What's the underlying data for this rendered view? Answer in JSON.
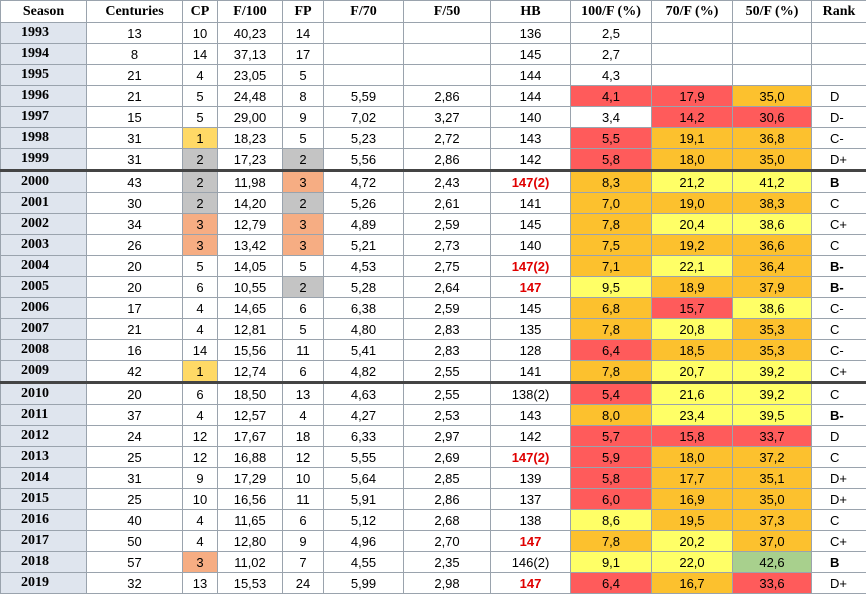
{
  "table": {
    "header": [
      "Season",
      "Centuries",
      "CP",
      "F/100",
      "FP",
      "F/70",
      "F/50",
      "HB",
      "100/F (%)",
      "70/F (%)",
      "50/F (%)",
      "Rank"
    ],
    "rows": [
      [
        1993,
        13,
        10,
        "40,23",
        14,
        null,
        null,
        136,
        "2,5",
        null,
        null,
        null
      ],
      [
        1994,
        8,
        14,
        "37,13",
        17,
        null,
        null,
        145,
        "2,7",
        null,
        null,
        null
      ],
      [
        1995,
        21,
        4,
        "23,05",
        5,
        null,
        null,
        144,
        "4,3",
        null,
        null,
        null
      ],
      [
        1996,
        21,
        5,
        "24,48",
        8,
        "5,59",
        "2,86",
        144,
        "4,1",
        "17,9",
        "35,0",
        "D"
      ],
      [
        1997,
        15,
        5,
        "29,00",
        9,
        "7,02",
        "3,27",
        140,
        "3,4",
        "14,2",
        "30,6",
        "D-"
      ],
      [
        1998,
        31,
        1,
        "18,23",
        5,
        "5,23",
        "2,72",
        143,
        "5,5",
        "19,1",
        "36,8",
        "C-"
      ],
      [
        1999,
        31,
        2,
        "17,23",
        2,
        "5,56",
        "2,86",
        142,
        "5,8",
        "18,0",
        "35,0",
        "D+"
      ],
      [
        2000,
        43,
        2,
        "11,98",
        3,
        "4,72",
        "2,43",
        "147(2)",
        "8,3",
        "21,2",
        "41,2",
        "B"
      ],
      [
        2001,
        30,
        2,
        "14,20",
        2,
        "5,26",
        "2,61",
        141,
        "7,0",
        "19,0",
        "38,3",
        "C"
      ],
      [
        2002,
        34,
        3,
        "12,79",
        3,
        "4,89",
        "2,59",
        145,
        "7,8",
        "20,4",
        "38,6",
        "C+"
      ],
      [
        2003,
        26,
        3,
        "13,42",
        3,
        "5,21",
        "2,73",
        140,
        "7,5",
        "19,2",
        "36,6",
        "C"
      ],
      [
        2004,
        20,
        5,
        "14,05",
        5,
        "4,53",
        "2,75",
        "147(2)",
        "7,1",
        "22,1",
        "36,4",
        "B-"
      ],
      [
        2005,
        20,
        6,
        "10,55",
        2,
        "5,28",
        "2,64",
        147,
        "9,5",
        "18,9",
        "37,9",
        "B-"
      ],
      [
        2006,
        17,
        4,
        "14,65",
        6,
        "6,38",
        "2,59",
        145,
        "6,8",
        "15,7",
        "38,6",
        "C-"
      ],
      [
        2007,
        21,
        4,
        "12,81",
        5,
        "4,80",
        "2,83",
        135,
        "7,8",
        "20,8",
        "35,3",
        "C"
      ],
      [
        2008,
        16,
        14,
        "15,56",
        11,
        "5,41",
        "2,83",
        128,
        "6,4",
        "18,5",
        "35,3",
        "C-"
      ],
      [
        2009,
        42,
        1,
        "12,74",
        6,
        "4,82",
        "2,55",
        141,
        "7,8",
        "20,7",
        "39,2",
        "C+"
      ],
      [
        2010,
        20,
        6,
        "18,50",
        13,
        "4,63",
        "2,55",
        "138(2)",
        "5,4",
        "21,6",
        "39,2",
        "C"
      ],
      [
        2011,
        37,
        4,
        "12,57",
        4,
        "4,27",
        "2,53",
        143,
        "8,0",
        "23,4",
        "39,5",
        "B-"
      ],
      [
        2012,
        24,
        12,
        "17,67",
        18,
        "6,33",
        "2,97",
        142,
        "5,7",
        "15,8",
        "33,7",
        "D"
      ],
      [
        2013,
        25,
        12,
        "16,88",
        12,
        "5,55",
        "2,69",
        "147(2)",
        "5,9",
        "18,0",
        "37,2",
        "C"
      ],
      [
        2014,
        31,
        9,
        "17,29",
        10,
        "5,64",
        "2,85",
        139,
        "5,8",
        "17,7",
        "35,1",
        "D+"
      ],
      [
        2015,
        25,
        10,
        "16,56",
        11,
        "5,91",
        "2,86",
        137,
        "6,0",
        "16,9",
        "35,0",
        "D+"
      ],
      [
        2016,
        40,
        4,
        "11,65",
        6,
        "5,12",
        "2,68",
        138,
        "8,6",
        "19,5",
        "37,3",
        "C"
      ],
      [
        2017,
        50,
        4,
        "12,80",
        9,
        "4,96",
        "2,70",
        147,
        "7,8",
        "20,2",
        "37,0",
        "C+"
      ],
      [
        2018,
        57,
        3,
        "11,02",
        7,
        "4,55",
        "2,35",
        "146(2)",
        "9,1",
        "22,0",
        "42,6",
        "B"
      ],
      [
        2019,
        32,
        13,
        "15,53",
        24,
        "5,99",
        "2,98",
        147,
        "6,4",
        "16,7",
        "33,6",
        "D+"
      ]
    ]
  }
}
